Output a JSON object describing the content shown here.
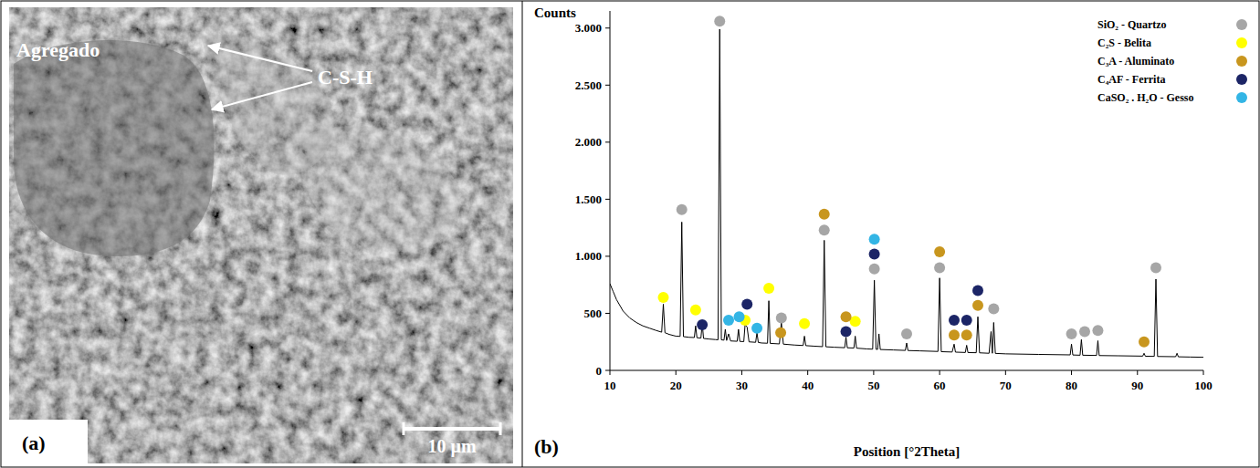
{
  "panels": {
    "a": {
      "letter": "(a)",
      "labels": [
        "Agregado",
        "C-S-H"
      ],
      "scale_bar": "10 µm"
    },
    "b": {
      "letter": "(b)"
    }
  },
  "chart_data": {
    "type": "line",
    "y_label": "Counts",
    "x_label": "Position [°2Theta]",
    "xlim": [
      10,
      100
    ],
    "xticks": [
      10,
      20,
      30,
      40,
      50,
      60,
      70,
      80,
      90,
      100
    ],
    "ylim": [
      0,
      3150
    ],
    "yticks": [
      0,
      500,
      {
        "value": 1000,
        "label": "1.000"
      },
      {
        "value": 1500,
        "label": "1.500"
      },
      {
        "value": 2000,
        "label": "2.000"
      },
      {
        "value": 2500,
        "label": "2.500"
      },
      {
        "value": 3000,
        "label": "3.000"
      }
    ],
    "legend": "upper right",
    "series": [
      {
        "color": "#000000",
        "x": [
          10,
          10.5,
          11,
          12,
          13,
          14,
          15,
          16,
          17,
          17.85,
          18.1,
          18.35,
          19,
          20,
          20.65,
          20.9,
          21.15,
          22,
          22.8,
          23.0,
          23.2,
          23.8,
          24.0,
          24.2,
          25,
          26,
          26.4,
          26.65,
          26.9,
          27.3,
          27.5,
          27.7,
          28.0,
          28.3,
          29.3,
          29.5,
          29.7,
          30.3,
          30.5,
          30.8,
          31.1,
          32.1,
          32.3,
          32.5,
          33,
          33.9,
          34.1,
          34.3,
          35.7,
          36.0,
          36.3,
          38,
          39.3,
          39.5,
          39.7,
          41,
          42.25,
          42.5,
          42.75,
          44,
          45.6,
          45.8,
          46.0,
          47.0,
          47.2,
          47.4,
          49,
          49.85,
          50.1,
          50.35,
          50.6,
          50.8,
          51.0,
          53,
          54.8,
          55.0,
          55.2,
          57,
          59.75,
          60.0,
          60.25,
          61.9,
          62.2,
          62.4,
          63.9,
          64.1,
          64.3,
          65.55,
          65.8,
          66.05,
          67.5,
          67.8,
          68.0,
          68.2,
          68.45,
          70,
          75,
          79.8,
          80.0,
          80.2,
          81.3,
          81.5,
          81.7,
          83.8,
          84.0,
          84.2,
          87,
          90.8,
          91.0,
          91.2,
          92.55,
          92.8,
          93.05,
          95.8,
          96.0,
          96.2,
          98,
          100
        ],
        "values": [
          760,
          690,
          620,
          520,
          460,
          420,
          390,
          370,
          350,
          335,
          580,
          330,
          315,
          300,
          298,
          1300,
          296,
          290,
          288,
          390,
          286,
          283,
          410,
          280,
          275,
          270,
          268,
          2990,
          268,
          265,
          360,
          262,
          320,
          258,
          255,
          360,
          254,
          252,
          400,
          380,
          250,
          246,
          330,
          245,
          240,
          238,
          610,
          237,
          232,
          420,
          230,
          222,
          218,
          300,
          217,
          212,
          208,
          1140,
          207,
          203,
          199,
          290,
          198,
          196,
          300,
          195,
          188,
          186,
          790,
          185,
          184,
          320,
          183,
          179,
          175,
          240,
          174,
          171,
          166,
          810,
          164,
          161,
          230,
          160,
          157,
          220,
          156,
          155,
          470,
          154,
          150,
          340,
          150,
          420,
          149,
          145,
          140,
          136,
          230,
          135,
          133,
          270,
          133,
          131,
          260,
          130,
          128,
          125,
          150,
          124,
          123,
          800,
          122,
          120,
          150,
          119,
          117,
          115
        ]
      },
      {
        "name": "SiO₂ - Quartzo",
        "type": "scatter",
        "marker": "circle",
        "color": "#a6a6a6",
        "x": [
          20.9,
          26.65,
          36.0,
          42.5,
          50.1,
          55.0,
          60.0,
          68.2,
          80.0,
          82.0,
          84.0,
          92.8
        ],
        "values": [
          1410,
          3060,
          460,
          1230,
          890,
          320,
          900,
          540,
          320,
          340,
          350,
          900
        ]
      },
      {
        "name": "C₂S - Belita",
        "type": "scatter",
        "marker": "circle",
        "color": "#ffff00",
        "x": [
          18.1,
          23.0,
          30.5,
          34.1,
          39.5,
          47.2
        ],
        "values": [
          640,
          530,
          440,
          720,
          410,
          430
        ]
      },
      {
        "name": "C₃A - Aluminato",
        "type": "scatter",
        "marker": "circle",
        "color": "#c8961e",
        "x": [
          35.9,
          42.5,
          45.8,
          60.0,
          62.2,
          64.1,
          65.8,
          91.0
        ],
        "values": [
          330,
          1370,
          470,
          1040,
          310,
          310,
          570,
          250
        ]
      },
      {
        "name": "C₄AF - Ferrita",
        "type": "scatter",
        "marker": "circle",
        "color": "#1c2566",
        "x": [
          24.0,
          30.8,
          45.8,
          50.1,
          62.2,
          64.1,
          65.8
        ],
        "values": [
          400,
          580,
          340,
          1020,
          440,
          440,
          700
        ]
      },
      {
        "name": "CaSO₂ . H₂O - Gesso",
        "type": "scatter",
        "marker": "circle",
        "color": "#33b5e5",
        "x": [
          28.0,
          29.6,
          32.3,
          50.1
        ],
        "values": [
          440,
          470,
          370,
          1150
        ]
      }
    ]
  }
}
